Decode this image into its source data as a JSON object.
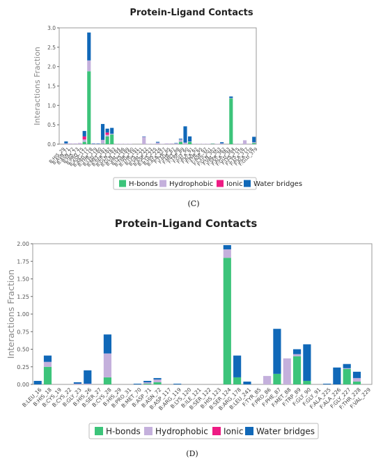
{
  "colors": {
    "hbonds": "#3cc47a",
    "hydrophobic": "#c4b0dc",
    "ionic": "#ee1b84",
    "water": "#1068b8",
    "frame": "#999999"
  },
  "legend": [
    "H-bonds",
    "Hydrophobic",
    "Ionic",
    "Water bridges"
  ],
  "chart_data": [
    {
      "type": "bar",
      "stacked": true,
      "title": "Protein-Ligand Contacts",
      "ylabel": "Interactions Fraction",
      "xlabel": "",
      "panel_label": "(C)",
      "ylim": [
        0,
        3.0
      ],
      "yticks": [
        "0.0",
        "0.5",
        "1.0",
        "1.5",
        "2.0",
        "2.5",
        "3.0"
      ],
      "legend_position": "bottom",
      "categories": [
        "B:HIS_29",
        "B:ASN_71",
        "B:ASN_72",
        "B:HIS_73",
        "B:PRO_75",
        "B:ASP_177",
        "B:ARG_178",
        "B:THR_179",
        "B:LEU_180",
        "B:MET_181",
        "B:SER_182",
        "B:GLN_183",
        "B:GLN_184",
        "B:VAL_186",
        "B:LYS_189",
        "B:THR_190",
        "B:THR_191",
        "B:LYS_221",
        "B:VAL_222",
        "B:ASP_223",
        "B:CYS_225",
        "B:HIS_226",
        "B:ALA_227",
        "F:TYR_85",
        "F:PHE_87",
        "F:MET_88",
        "F:TRP_89",
        "F:GLY_90",
        "F:ALA_91",
        "F:ALA_92",
        "F:PHE_95",
        "F:ASP_97",
        "F:CYS_301",
        "F:GLN_302",
        "F:VAL_303",
        "F:SER_362",
        "F:ALA_363",
        "F:GLU_364",
        "F:LYS_375",
        "F:CYS_376",
        "F:ALA_377",
        "F:ALA_378",
        "F:GLU_379"
      ],
      "series": [
        {
          "name": "H-bonds",
          "values": [
            0,
            0,
            0,
            0,
            0,
            0.06,
            1.88,
            0,
            0,
            0.01,
            0.2,
            0.25,
            0,
            0,
            0,
            0,
            0,
            0,
            0,
            0,
            0,
            0,
            0,
            0,
            0,
            0,
            0.06,
            0,
            0.06,
            0,
            0,
            0,
            0,
            0.01,
            0,
            0,
            0,
            1.18,
            0,
            0,
            0,
            0,
            0.03
          ]
        },
        {
          "name": "Hydrophobic",
          "values": [
            0,
            0.02,
            0.02,
            0.02,
            0.03,
            0.06,
            0.28,
            0.01,
            0.01,
            0.1,
            0.04,
            0.02,
            0.01,
            0.01,
            0.01,
            0.01,
            0,
            0,
            0.19,
            0.01,
            0.01,
            0.04,
            0.01,
            0.02,
            0.02,
            0.02,
            0.06,
            0.04,
            0.01,
            0.01,
            0.01,
            0.01,
            0.01,
            0.01,
            0.01,
            0.02,
            0,
            0.01,
            0.01,
            0.01,
            0.1,
            0,
            0.02
          ]
        },
        {
          "name": "Ionic",
          "values": [
            0,
            0,
            0,
            0,
            0,
            0.08,
            0,
            0,
            0,
            0,
            0.06,
            0,
            0,
            0,
            0,
            0,
            0,
            0,
            0,
            0,
            0,
            0,
            0,
            0,
            0,
            0,
            0,
            0,
            0,
            0,
            0,
            0,
            0,
            0,
            0,
            0,
            0,
            0,
            0,
            0,
            0,
            0,
            0
          ]
        },
        {
          "name": "Water bridges",
          "values": [
            0,
            0.05,
            0,
            0,
            0,
            0.14,
            0.72,
            0.01,
            0.01,
            0.41,
            0.1,
            0.15,
            0,
            0,
            0,
            0,
            0,
            0,
            0.01,
            0,
            0,
            0.02,
            0,
            0,
            0,
            0.01,
            0.02,
            0.42,
            0.13,
            0,
            0,
            0,
            0,
            0,
            0,
            0.03,
            0,
            0.04,
            0,
            0,
            0,
            0,
            0.14
          ]
        }
      ]
    },
    {
      "type": "bar",
      "stacked": true,
      "title": "Protein-Ligand Contacts",
      "ylabel": "Interactions Fraction",
      "xlabel": "",
      "panel_label": "(D)",
      "ylim": [
        0,
        2.0
      ],
      "yticks": [
        "0.00",
        "0.25",
        "0.50",
        "0.75",
        "1.00",
        "1.25",
        "1.50",
        "1.75",
        "2.00"
      ],
      "legend_position": "bottom",
      "categories": [
        "B:LEU_16",
        "B:HIS_18",
        "B:CYS_19",
        "B:CYS_22",
        "B:GLY_23",
        "B:HIS_26",
        "B:SER_27",
        "B:CYS_28",
        "B:HIS_29",
        "B:PRO_31",
        "B:MET_70",
        "B:ASP_71",
        "B:ASN_72",
        "B:ASP_117",
        "B:ARG_119",
        "B:LYS_120",
        "B:ILE_121",
        "B:SER_122",
        "B:HIS_123",
        "B:SER_124",
        "B:ARG_178",
        "B:LEU_241",
        "F:TYR_85",
        "F:PRO_86",
        "F:PHE_87",
        "F:MET_88",
        "F:TRP_89",
        "F:GLY_90",
        "F:GLY_91",
        "F:ALA_225",
        "F:ALA_226",
        "F:GLY_227",
        "F:THR_228",
        "F:VAL_229"
      ],
      "series": [
        {
          "name": "H-bonds",
          "values": [
            0,
            0.25,
            0,
            0,
            0,
            0,
            0,
            0.1,
            0,
            0,
            0,
            0.01,
            0.03,
            0,
            0,
            0,
            0,
            0,
            0,
            1.8,
            0.1,
            0,
            0,
            0,
            0.15,
            0,
            0.4,
            0.05,
            0,
            0,
            0,
            0.22,
            0.04,
            0
          ]
        },
        {
          "name": "Hydrophobic",
          "values": [
            0,
            0.07,
            0,
            0,
            0.01,
            0.01,
            0,
            0.34,
            0,
            0,
            0,
            0.02,
            0.04,
            0,
            0,
            0,
            0,
            0,
            0,
            0.12,
            0,
            0,
            0,
            0.12,
            0,
            0.37,
            0.03,
            0,
            0,
            0,
            0,
            0.01,
            0.05,
            0
          ]
        },
        {
          "name": "Ionic",
          "values": [
            0,
            0,
            0,
            0,
            0,
            0,
            0,
            0,
            0,
            0,
            0,
            0,
            0,
            0,
            0,
            0,
            0,
            0,
            0,
            0,
            0,
            0,
            0,
            0,
            0,
            0,
            0,
            0,
            0,
            0,
            0,
            0,
            0,
            0
          ]
        },
        {
          "name": "Water bridges",
          "values": [
            0.05,
            0.09,
            0,
            0,
            0.02,
            0.19,
            0,
            0.27,
            0,
            0,
            0.01,
            0.02,
            0.02,
            0,
            0.01,
            0,
            0,
            0,
            0,
            0.06,
            0.31,
            0.04,
            0,
            0,
            0.64,
            0,
            0.07,
            0.52,
            0,
            0.01,
            0.24,
            0.06,
            0.09,
            0
          ]
        }
      ]
    }
  ]
}
